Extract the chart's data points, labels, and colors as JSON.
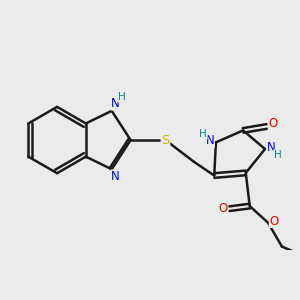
{
  "background_color": "#ebebeb",
  "bond_color": "#1a1a1a",
  "bond_width": 1.8,
  "atom_colors": {
    "N": "#0000ee",
    "O": "#ee0000",
    "S": "#ccbb00",
    "H": "#008888"
  },
  "font_size": 8.5,
  "dpi": 100,
  "fig_width": 3.0,
  "fig_height": 3.0,
  "xlim": [
    0,
    10
  ],
  "ylim": [
    0,
    10
  ]
}
